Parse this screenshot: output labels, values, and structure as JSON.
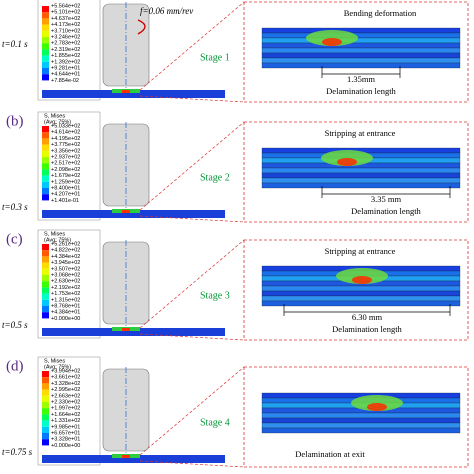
{
  "panels": [
    {
      "label": "",
      "time": "t=0.1 s",
      "feed": "f=0.06 mm/rev",
      "stage": "Stage 1",
      "legend_title": "",
      "legend_avg": "",
      "legend": [
        "+5.564e+02",
        "+5.101e+02",
        "+4.637e+02",
        "+4.173e+02",
        "+3.710e+02",
        "+3.246e+02",
        "+2.783e+02",
        "+2.319e+02",
        "+1.855e+02",
        "+1.392e+02",
        "+9.281e+01",
        "+4.644e+01",
        "+7.854e-02"
      ],
      "annotations": [
        "Bending deformation"
      ],
      "length": "1.35mm",
      "length_label": "Delamination length"
    },
    {
      "label": "(b)",
      "time": "t=0.3 s",
      "stage": "Stage 2",
      "legend_title": "S, Mises",
      "legend_avg": "(Avg: 75%)",
      "legend": [
        "+5.033e+02",
        "+4.614e+02",
        "+4.195e+02",
        "+3.775e+02",
        "+3.356e+02",
        "+2.937e+02",
        "+2.517e+02",
        "+2.098e+02",
        "+1.679e+02",
        "+1.259e+02",
        "+8.400e+01",
        "+4.207e+01",
        "+1.401e-01"
      ],
      "annotations": [
        "Stripping at entrance"
      ],
      "length": "3.35 mm",
      "length_label": "Delamination length"
    },
    {
      "label": "(c)",
      "time": "t=0.5 s",
      "stage": "Stage 3",
      "legend_title": "S, Mises",
      "legend_avg": "(Avg: 75%)",
      "legend": [
        "+5.261e+02",
        "+4.822e+02",
        "+4.384e+02",
        "+3.945e+02",
        "+3.507e+02",
        "+3.068e+02",
        "+2.630e+02",
        "+2.192e+02",
        "+1.753e+02",
        "+1.315e+02",
        "+8.768e+01",
        "+4.384e+01",
        "+0.000e+00"
      ],
      "annotations": [
        "Stripping at entrance"
      ],
      "length": "6.30 mm",
      "length_label": "Delamination length"
    },
    {
      "label": "(d)",
      "time": "t=0.75 s",
      "stage": "Stage 4",
      "legend_title": "S, Mises",
      "legend_avg": "(Avg: 75%)",
      "legend": [
        "+3.994e+02",
        "+3.661e+02",
        "+3.328e+02",
        "+2.995e+02",
        "+2.663e+02",
        "+2.330e+02",
        "+1.997e+02",
        "+1.664e+02",
        "+1.331e+02",
        "+9.985e+01",
        "+6.657e+01",
        "+3.328e+01",
        "+0.000e+00"
      ],
      "annotations": [
        "Delamination at exit"
      ]
    }
  ]
}
